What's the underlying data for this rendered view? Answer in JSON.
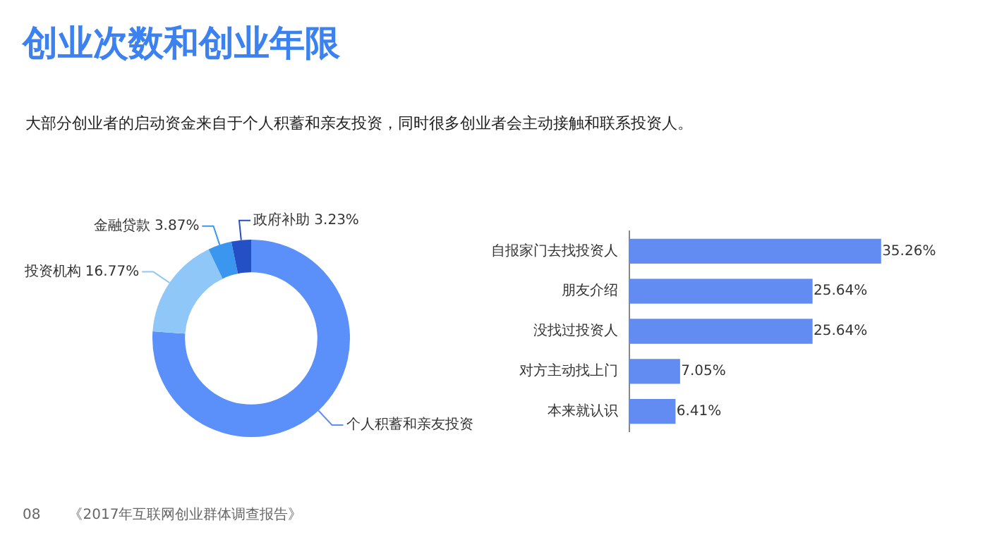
{
  "chart_data": [
    {
      "type": "donut",
      "title": "创业次数和创业年限",
      "subtitle": "大部分创业者的启动资金来自于个人积蓄和亲友投资，同时很多创业者会主动接触和联系投资人。",
      "categories": [
        "个人积蓄和亲友投资",
        "投资机构",
        "金融贷款",
        "政府补助"
      ],
      "values": [
        76.13,
        16.77,
        3.87,
        3.23
      ],
      "value_labels": [
        null,
        "16.77%",
        "3.87%",
        "3.23%"
      ],
      "colors": [
        "#5b8ff9",
        "#8ec7f8",
        "#3a96ef",
        "#2450c6"
      ],
      "legend": false,
      "annotations": [
        "08",
        "《2017年互联网创业群体调查报告》"
      ]
    },
    {
      "type": "bar",
      "orientation": "horizontal",
      "categories": [
        "自报家门去找投资人",
        "朋友介绍",
        "没找过投资人",
        "对方主动找上门",
        "本来就认识"
      ],
      "values": [
        35.26,
        25.64,
        25.64,
        7.05,
        6.41
      ],
      "value_labels": [
        "35.26%",
        "25.64%",
        "25.64%",
        "7.05%",
        "6.41%"
      ],
      "color": "#628cf2",
      "legend": false,
      "tick_labels": "y"
    }
  ]
}
